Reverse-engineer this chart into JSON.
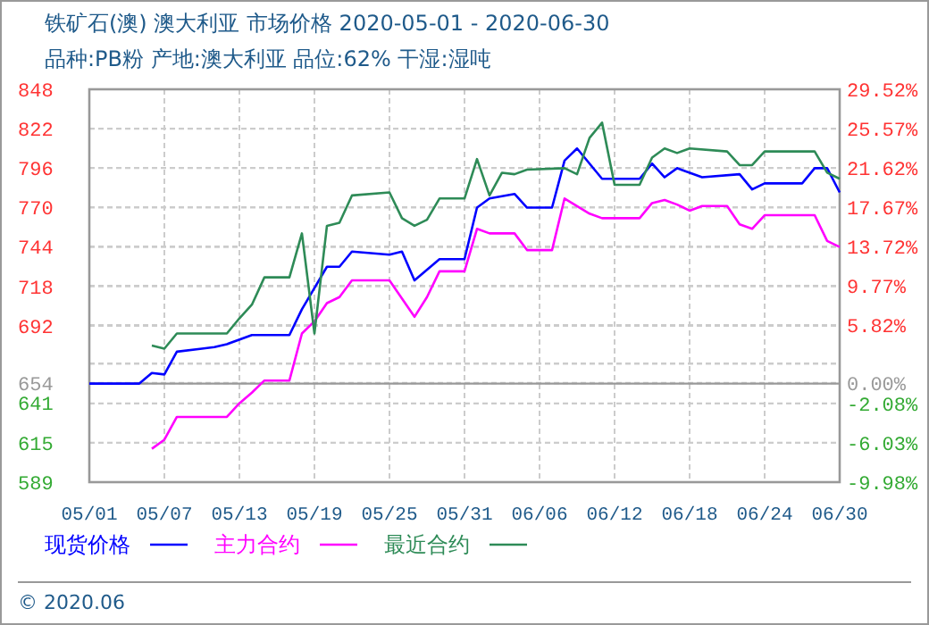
{
  "chart_data": {
    "type": "line",
    "title": "铁矿石(澳) 澳大利亚 市场价格 2020-05-01 - 2020-06-30",
    "subtitle": "品种:PB粉 产地:澳大利亚 品位:62% 干湿:湿吨",
    "xlim": [
      "2020-05-01",
      "2020-06-30"
    ],
    "xticks": [
      {
        "value": "2020-05-01",
        "label": "05/01"
      },
      {
        "value": "2020-05-07",
        "label": "05/07"
      },
      {
        "value": "2020-05-13",
        "label": "05/13"
      },
      {
        "value": "2020-05-19",
        "label": "05/19"
      },
      {
        "value": "2020-05-25",
        "label": "05/25"
      },
      {
        "value": "2020-05-31",
        "label": "05/31"
      },
      {
        "value": "2020-06-06",
        "label": "06/06"
      },
      {
        "value": "2020-06-12",
        "label": "06/12"
      },
      {
        "value": "2020-06-18",
        "label": "06/18"
      },
      {
        "value": "2020-06-24",
        "label": "06/24"
      },
      {
        "value": "2020-06-30",
        "label": "06/30"
      }
    ],
    "ylim": [
      589,
      848
    ],
    "yticks": [
      589,
      615,
      641,
      654,
      {
        "value": 667,
        "label": null
      },
      692,
      718,
      744,
      770,
      796,
      822,
      848
    ],
    "y2lim": [
      -9.98,
      29.52
    ],
    "y2ticks": [
      {
        "value": -9.98,
        "label": "-9.98%"
      },
      {
        "value": -6.03,
        "label": "-6.03%"
      },
      {
        "value": -2.08,
        "label": "-2.08%"
      },
      {
        "value": 0,
        "label": "0.00%"
      },
      {
        "value": 1.96,
        "label": null
      },
      {
        "value": 5.82,
        "label": "5.82%"
      },
      {
        "value": 9.77,
        "label": "9.77%"
      },
      {
        "value": 13.72,
        "label": "13.72%"
      },
      {
        "value": 17.67,
        "label": "17.67%"
      },
      {
        "value": 21.62,
        "label": "21.62%"
      },
      {
        "value": 25.57,
        "label": "25.57%"
      },
      {
        "value": 29.52,
        "label": "29.52%"
      }
    ],
    "ref_lines": [
      {
        "axis": "y",
        "value": 654,
        "color": "#999999"
      }
    ],
    "grid": true,
    "legend": "bottom",
    "line_style": "solid",
    "marker": "none",
    "series": [
      {
        "name": "现货价格",
        "color": "#0000ff",
        "x": [
          "2020-05-01",
          "2020-05-05",
          "2020-05-06",
          "2020-05-07",
          "2020-05-08",
          "2020-05-10",
          "2020-05-11",
          "2020-05-12",
          "2020-05-14",
          "2020-05-17",
          "2020-05-18",
          "2020-05-19",
          "2020-05-20",
          "2020-05-21",
          "2020-05-22",
          "2020-05-25",
          "2020-05-26",
          "2020-05-27",
          "2020-05-29",
          "2020-05-31",
          "2020-06-01",
          "2020-06-02",
          "2020-06-04",
          "2020-06-05",
          "2020-06-07",
          "2020-06-08",
          "2020-06-09",
          "2020-06-10",
          "2020-06-11",
          "2020-06-14",
          "2020-06-15",
          "2020-06-16",
          "2020-06-17",
          "2020-06-19",
          "2020-06-22",
          "2020-06-23",
          "2020-06-24",
          "2020-06-27",
          "2020-06-28",
          "2020-06-29",
          "2020-06-30"
        ],
        "values": [
          654,
          654,
          661,
          660,
          675,
          677,
          678,
          680,
          686,
          686,
          703,
          717,
          731,
          731,
          741,
          739,
          741,
          722,
          736,
          736,
          770,
          776,
          779,
          770,
          770,
          801,
          809,
          799,
          789,
          789,
          799,
          790,
          796,
          790,
          792,
          782,
          786,
          786,
          796,
          796,
          780
        ]
      },
      {
        "name": "主力合约",
        "color": "#ff00ff",
        "x": [
          "2020-05-06",
          "2020-05-07",
          "2020-05-08",
          "2020-05-12",
          "2020-05-13",
          "2020-05-14",
          "2020-05-15",
          "2020-05-17",
          "2020-05-18",
          "2020-05-19",
          "2020-05-20",
          "2020-05-21",
          "2020-05-22",
          "2020-05-25",
          "2020-05-27",
          "2020-05-28",
          "2020-05-29",
          "2020-05-31",
          "2020-06-01",
          "2020-06-02",
          "2020-06-04",
          "2020-06-05",
          "2020-06-07",
          "2020-06-08",
          "2020-06-10",
          "2020-06-11",
          "2020-06-14",
          "2020-06-15",
          "2020-06-16",
          "2020-06-17",
          "2020-06-18",
          "2020-06-19",
          "2020-06-21",
          "2020-06-22",
          "2020-06-23",
          "2020-06-24",
          "2020-06-28",
          "2020-06-29",
          "2020-06-30"
        ],
        "values": [
          611,
          617,
          632,
          632,
          641,
          648,
          656,
          656,
          687,
          695,
          707,
          711,
          722,
          722,
          698,
          711,
          728,
          728,
          756,
          753,
          753,
          742,
          742,
          776,
          766,
          763,
          763,
          773,
          775,
          772,
          768,
          771,
          771,
          759,
          756,
          765,
          765,
          748,
          744
        ]
      },
      {
        "name": "最近合约",
        "color": "#2e8b57",
        "x": [
          "2020-05-06",
          "2020-05-07",
          "2020-05-08",
          "2020-05-12",
          "2020-05-13",
          "2020-05-14",
          "2020-05-15",
          "2020-05-17",
          "2020-05-18",
          "2020-05-19",
          "2020-05-20",
          "2020-05-21",
          "2020-05-22",
          "2020-05-25",
          "2020-05-26",
          "2020-05-27",
          "2020-05-28",
          "2020-05-29",
          "2020-05-31",
          "2020-06-01",
          "2020-06-02",
          "2020-06-03",
          "2020-06-04",
          "2020-06-05",
          "2020-06-08",
          "2020-06-09",
          "2020-06-10",
          "2020-06-11",
          "2020-06-12",
          "2020-06-14",
          "2020-06-15",
          "2020-06-16",
          "2020-06-17",
          "2020-06-18",
          "2020-06-21",
          "2020-06-22",
          "2020-06-23",
          "2020-06-24",
          "2020-06-28",
          "2020-06-29",
          "2020-06-30"
        ],
        "values": [
          679,
          677,
          687,
          687,
          697,
          706,
          724,
          724,
          753,
          687,
          758,
          760,
          778,
          780,
          763,
          758,
          762,
          776,
          776,
          802,
          778,
          793,
          792,
          795,
          796,
          792,
          816,
          826,
          785,
          785,
          803,
          809,
          806,
          809,
          807,
          798,
          798,
          807,
          807,
          793,
          789
        ]
      }
    ],
    "annotations": [
      "© 2020.06"
    ]
  }
}
